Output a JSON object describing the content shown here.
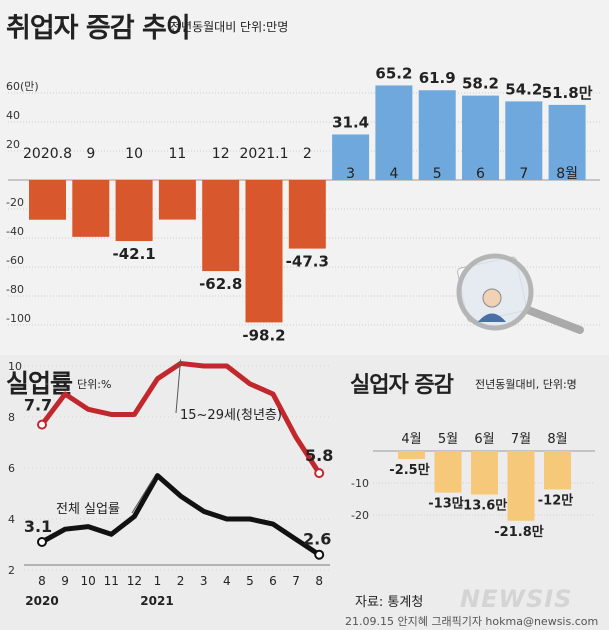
{
  "top": {
    "title": "취업자 증감 추이",
    "subtitle": "전년동월대비 단위:만명"
  },
  "bottom_left": {
    "title": "실업률",
    "subtitle": "단위:%"
  },
  "bottom_right": {
    "title": "실업자 증감",
    "subtitle": "전년동월대비, 단위:명"
  },
  "footer": {
    "source": "자료: 통계청",
    "byline": "21.09.15 안지혜 그래픽기자 hokma@newsis.com",
    "watermark": "NEWSIS"
  },
  "colors": {
    "negative_bar": "#d9572c",
    "positive_bar": "#6fa8dc",
    "youth_line": "#c1272d",
    "total_line": "#111111",
    "unemployed_bar": "#f6c97a"
  },
  "chart_data": [
    {
      "type": "bar",
      "title": "취업자 증감 추이",
      "categories": [
        "2020.8",
        "9",
        "10",
        "11",
        "12",
        "2021.1",
        "2",
        "3",
        "4",
        "5",
        "6",
        "7",
        "8월"
      ],
      "values": [
        -27.4,
        -39.2,
        -42.1,
        -27.3,
        -62.8,
        -98.2,
        -47.3,
        31.4,
        65.2,
        61.9,
        58.2,
        54.2,
        51.8
      ],
      "value_labels": [
        "",
        "",
        "-42.1",
        "",
        "-62.8",
        "-98.2",
        "-47.3",
        "31.4",
        "65.2",
        "61.9",
        "58.2",
        "54.2",
        "51.8만"
      ],
      "ylim": [
        -100,
        60
      ],
      "yticks": [
        "60(만)",
        "40",
        "20",
        "-20",
        "-40",
        "-60",
        "-80",
        "-100"
      ]
    },
    {
      "type": "line",
      "title": "실업률",
      "x": [
        "8",
        "9",
        "10",
        "11",
        "12",
        "1",
        "2",
        "3",
        "4",
        "5",
        "6",
        "7",
        "8"
      ],
      "year_labels": [
        "2020",
        "2021"
      ],
      "series": [
        {
          "name": "15~29세(청년층)",
          "values": [
            7.7,
            8.9,
            8.3,
            8.1,
            8.1,
            9.5,
            10.1,
            10.0,
            10.0,
            9.3,
            8.9,
            7.2,
            5.8
          ]
        },
        {
          "name": "전체 실업률",
          "values": [
            3.1,
            3.6,
            3.7,
            3.4,
            4.1,
            5.7,
            4.9,
            4.3,
            4.0,
            4.0,
            3.8,
            3.2,
            2.6
          ]
        }
      ],
      "point_labels": [
        {
          "series": 0,
          "index": 0,
          "label": "7.7"
        },
        {
          "series": 0,
          "index": 12,
          "label": "5.8"
        },
        {
          "series": 1,
          "index": 0,
          "label": "3.1"
        },
        {
          "series": 1,
          "index": 12,
          "label": "2.6"
        }
      ],
      "ylim": [
        2,
        10.5
      ],
      "yticks": [
        "10",
        "8",
        "6",
        "4",
        "2"
      ]
    },
    {
      "type": "bar",
      "title": "실업자 증감",
      "categories": [
        "4월",
        "5월",
        "6월",
        "7월",
        "8월"
      ],
      "values": [
        -2.5,
        -13,
        -13.6,
        -21.8,
        -12
      ],
      "value_labels": [
        "-2.5만",
        "-13만",
        "-13.6만",
        "-21.8만",
        "-12만"
      ],
      "ylim": [
        -24,
        0
      ],
      "yticks": [
        "-10",
        "-20"
      ]
    }
  ]
}
